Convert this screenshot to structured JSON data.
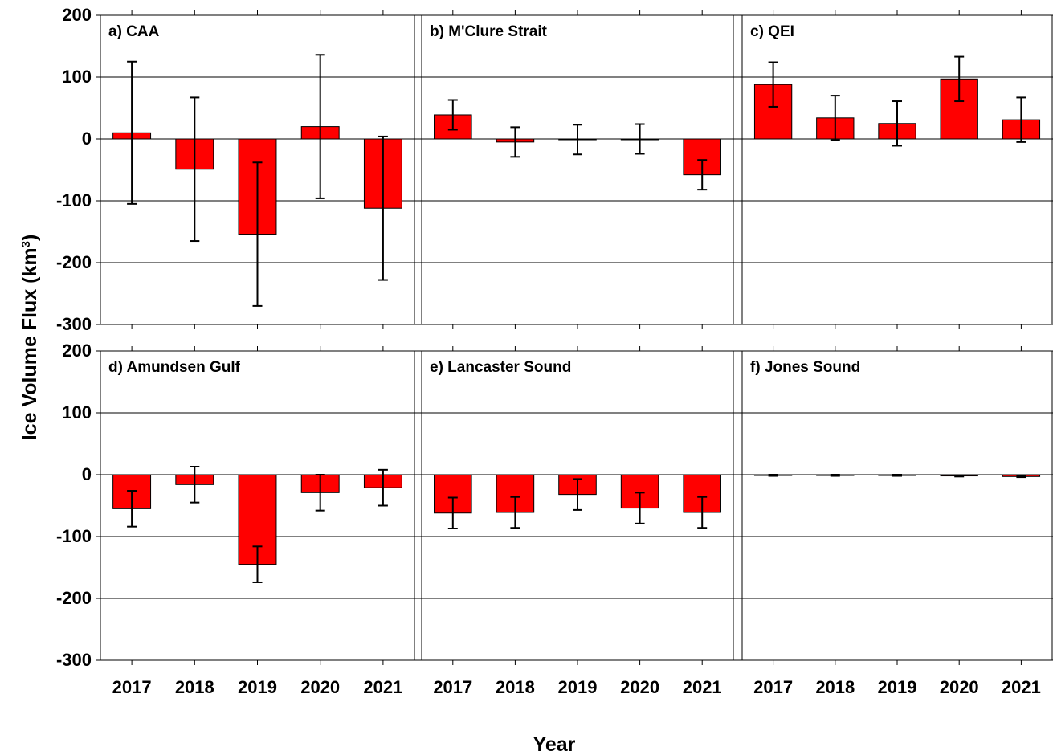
{
  "figure": {
    "ylabel": "Ice Volume Flux (km",
    "ylabel_sup": "3",
    "ylabel_close": ")",
    "xlabel": "Year"
  },
  "colors": {
    "bar": "#ff0000",
    "edge": "#000000",
    "grid": "#000000"
  },
  "chart_data": [
    {
      "type": "bar",
      "title": "a) CAA",
      "categories": [
        "2017",
        "2018",
        "2019",
        "2020",
        "2021"
      ],
      "values": [
        10,
        -49,
        -154,
        20,
        -112
      ],
      "error": [
        115,
        116,
        116,
        116,
        116
      ],
      "ylim": [
        -300,
        200
      ],
      "yticks": [
        200,
        100,
        0,
        -100,
        -200,
        -300
      ],
      "grid": true
    },
    {
      "type": "bar",
      "title": "b) M'Clure Strait",
      "categories": [
        "2017",
        "2018",
        "2019",
        "2020",
        "2021"
      ],
      "values": [
        39,
        -5,
        -1,
        0,
        -58
      ],
      "error": [
        24,
        24,
        24,
        24,
        24
      ],
      "ylim": [
        -300,
        200
      ],
      "yticks": [
        200,
        100,
        0,
        -100,
        -200,
        -300
      ],
      "grid": true
    },
    {
      "type": "bar",
      "title": "c) QEI",
      "categories": [
        "2017",
        "2018",
        "2019",
        "2020",
        "2021"
      ],
      "values": [
        88,
        34,
        25,
        97,
        31
      ],
      "error": [
        36,
        36,
        36,
        36,
        36
      ],
      "ylim": [
        -300,
        200
      ],
      "yticks": [
        200,
        100,
        0,
        -100,
        -200,
        -300
      ],
      "grid": true
    },
    {
      "type": "bar",
      "title": "d) Amundsen Gulf",
      "categories": [
        "2017",
        "2018",
        "2019",
        "2020",
        "2021"
      ],
      "values": [
        -55,
        -16,
        -145,
        -29,
        -21
      ],
      "error": [
        29,
        29,
        29,
        29,
        29
      ],
      "ylim": [
        -300,
        200
      ],
      "yticks": [
        200,
        100,
        0,
        -100,
        -200,
        -300
      ],
      "grid": true
    },
    {
      "type": "bar",
      "title": "e) Lancaster Sound",
      "categories": [
        "2017",
        "2018",
        "2019",
        "2020",
        "2021"
      ],
      "values": [
        -62,
        -61,
        -32,
        -54,
        -61
      ],
      "error": [
        25,
        25,
        25,
        25,
        25
      ],
      "ylim": [
        -300,
        200
      ],
      "yticks": [
        200,
        100,
        0,
        -100,
        -200,
        -300
      ],
      "grid": true
    },
    {
      "type": "bar",
      "title": "f) Jones Sound",
      "categories": [
        "2017",
        "2018",
        "2019",
        "2020",
        "2021"
      ],
      "values": [
        -1,
        -1,
        -1,
        -2,
        -3
      ],
      "error": [
        1,
        1,
        1,
        1,
        1
      ],
      "ylim": [
        -300,
        200
      ],
      "yticks": [
        200,
        100,
        0,
        -100,
        -200,
        -300
      ],
      "grid": true
    }
  ]
}
